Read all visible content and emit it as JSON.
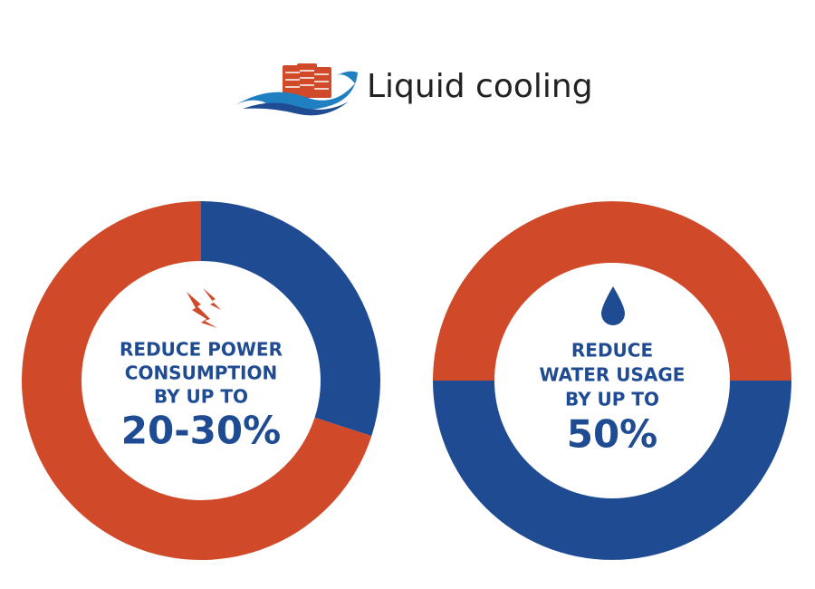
{
  "header": {
    "title": "Liquid cooling"
  },
  "chart_data": [
    {
      "type": "pie",
      "donut": true,
      "start_angle": 0,
      "values": [
        30,
        70
      ],
      "colors": [
        "#1f4b93",
        "#d04a2a"
      ],
      "text_lines": [
        "REDUCE POWER",
        "CONSUMPTION",
        "BY UP TO"
      ],
      "headline": "20-30%"
    },
    {
      "type": "pie",
      "donut": true,
      "start_angle": 270,
      "values": [
        50,
        50
      ],
      "colors": [
        "#d04a2a",
        "#1f4b93"
      ],
      "text_lines": [
        "REDUCE",
        "WATER USAGE",
        "BY UP TO"
      ],
      "headline": "50%"
    }
  ]
}
